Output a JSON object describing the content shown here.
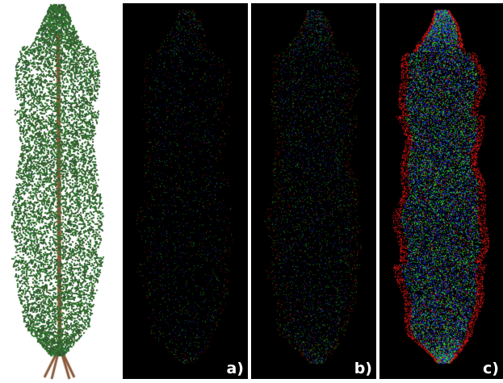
{
  "figure": {
    "photo": {
      "subject": "tree-photo"
    },
    "panels": [
      {
        "label": "a)",
        "density": 0.1,
        "edge_red": 0.1
      },
      {
        "label": "b)",
        "density": 0.2,
        "edge_red": 0.2
      },
      {
        "label": "c)",
        "density": 1.0,
        "edge_red": 1.0
      }
    ],
    "colors": {
      "background": "#000000",
      "red": "#d01414",
      "green": "#28d228",
      "blue": "#1e28d2",
      "foliage": "#3a5a36",
      "trunk": "#8a5a3a"
    }
  }
}
